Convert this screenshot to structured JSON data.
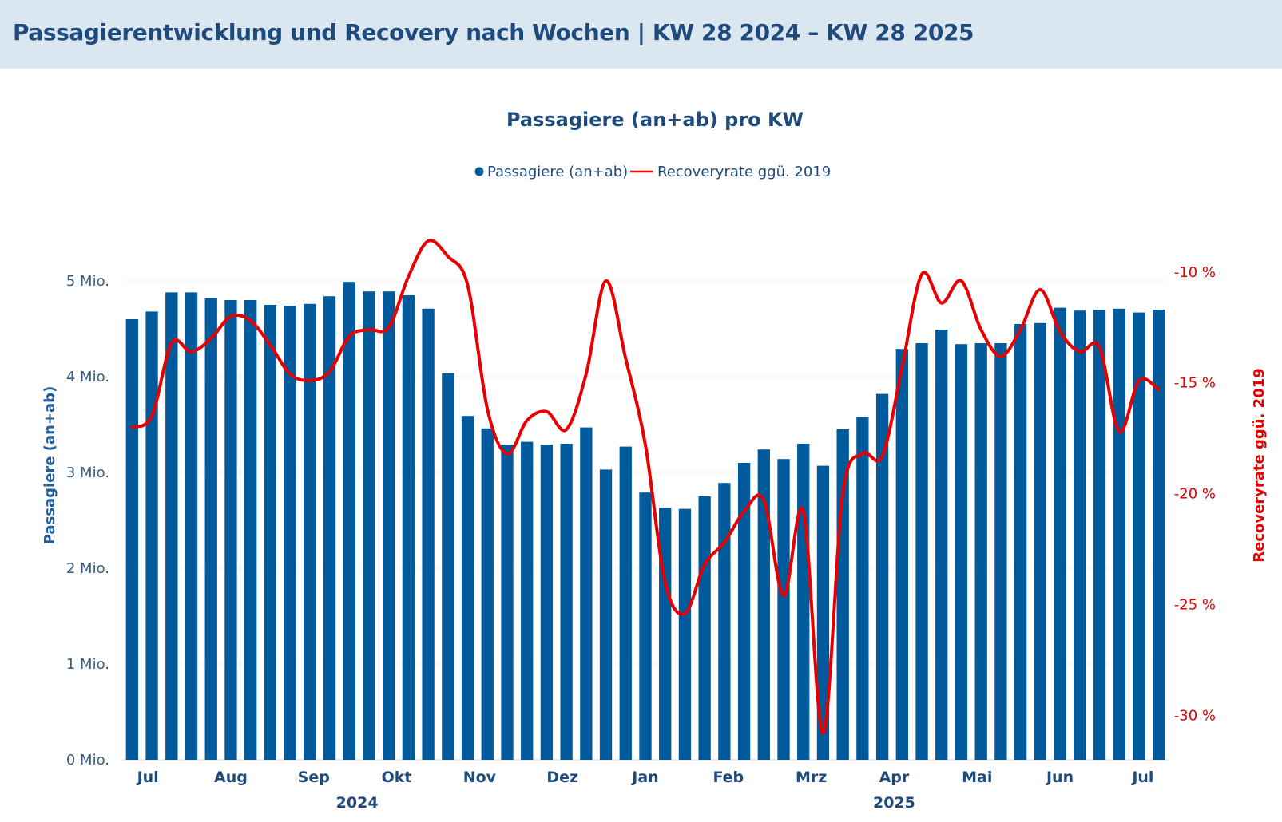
{
  "header": {
    "title": "Passagierentwicklung und Recovery nach Wochen | KW 28 2024 – KW 28 2025"
  },
  "chart_data": {
    "type": "bar",
    "title": "Passagiere (an+ab) pro KW",
    "colors": {
      "bar": "#005a9c",
      "line": "#e60000",
      "header_bg": "#dae6f0",
      "title": "#1f4a7c"
    },
    "legend": {
      "placement": "top-center",
      "entries": [
        "Passagiere (an+ab)",
        "Recoveryrate ggü. 2019"
      ]
    },
    "ylabel": "Passagiere (an+ab)",
    "y2label": "Recoveryrate ggü. 2019",
    "ylim": [
      0,
      5.95
    ],
    "y2lim": [
      -32,
      -6.3
    ],
    "y_ticks": [
      0,
      1,
      2,
      3,
      4,
      5
    ],
    "y_tick_labels": [
      "0 Mio.",
      "1 Mio.",
      "2 Mio.",
      "3 Mio.",
      "4 Mio.",
      "5 Mio."
    ],
    "y2_ticks": [
      -30,
      -25,
      -20,
      -15,
      -10
    ],
    "y2_tick_labels": [
      "-30 %",
      "-25 %",
      "-20 %",
      "-15 %",
      "-10 %"
    ],
    "grid": true,
    "x_month_labels": [
      {
        "label": "Jul",
        "week": 1.3
      },
      {
        "label": "Aug",
        "week": 5.5
      },
      {
        "label": "Sep",
        "week": 9.7
      },
      {
        "label": "Okt",
        "week": 13.9
      },
      {
        "label": "Nov",
        "week": 18.1
      },
      {
        "label": "Dez",
        "week": 22.3
      },
      {
        "label": "Jan",
        "week": 26.5
      },
      {
        "label": "Feb",
        "week": 30.7
      },
      {
        "label": "Mrz",
        "week": 34.9
      },
      {
        "label": "Apr",
        "week": 39.1
      },
      {
        "label": "Mai",
        "week": 43.3
      },
      {
        "label": "Jun",
        "week": 47.5
      },
      {
        "label": "Jul",
        "week": 51.7
      }
    ],
    "x_year_labels": [
      {
        "label": "2024",
        "week": 11.9
      },
      {
        "label": "2025",
        "week": 39.1
      }
    ],
    "series": [
      {
        "name": "Passagiere (an+ab)",
        "type": "bar",
        "unit": "Mio.",
        "values": [
          4.6,
          4.68,
          4.88,
          4.88,
          4.82,
          4.8,
          4.8,
          4.75,
          4.74,
          4.76,
          4.84,
          4.99,
          4.89,
          4.89,
          4.85,
          4.71,
          4.04,
          3.59,
          3.46,
          3.29,
          3.32,
          3.29,
          3.3,
          3.47,
          3.03,
          3.27,
          2.79,
          2.63,
          2.62,
          2.75,
          2.89,
          3.1,
          3.24,
          3.14,
          3.3,
          3.07,
          3.45,
          3.58,
          3.82,
          4.29,
          4.35,
          4.49,
          4.34,
          4.35,
          4.35,
          4.55,
          4.56,
          4.72,
          4.69,
          4.7,
          4.71,
          4.67,
          4.7
        ]
      },
      {
        "name": "Recoveryrate ggü. 2019",
        "type": "line",
        "unit": "%",
        "values": [
          -17.0,
          -16.5,
          -13.2,
          -13.6,
          -13.0,
          -12.0,
          -12.2,
          -13.3,
          -14.6,
          -14.9,
          -14.5,
          -12.9,
          -12.6,
          -12.5,
          -10.2,
          -8.6,
          -9.3,
          -10.6,
          -16.2,
          -18.2,
          -16.7,
          -16.3,
          -17.1,
          -14.6,
          -10.4,
          -13.9,
          -17.8,
          -24.0,
          -25.4,
          -23.2,
          -22.2,
          -20.8,
          -20.3,
          -24.6,
          -20.8,
          -30.8,
          -20.0,
          -18.2,
          -18.3,
          -14.3,
          -10.1,
          -11.4,
          -10.4,
          -12.6,
          -13.8,
          -12.6,
          -10.8,
          -12.7,
          -13.6,
          -13.4,
          -17.2,
          -14.9,
          -15.3
        ]
      }
    ]
  }
}
